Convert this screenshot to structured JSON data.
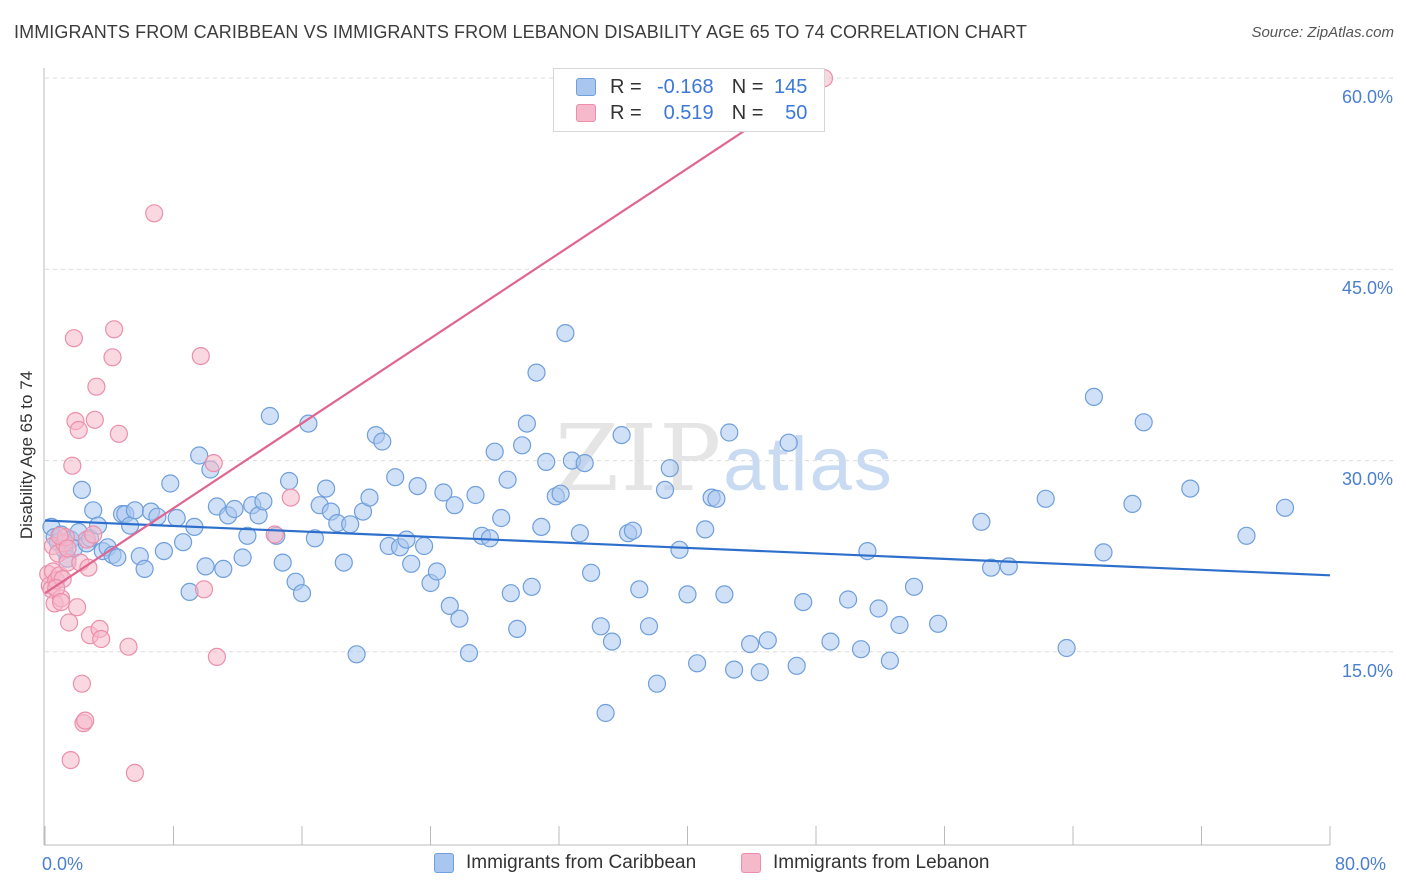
{
  "header": {
    "title": "IMMIGRANTS FROM CARIBBEAN VS IMMIGRANTS FROM LEBANON DISABILITY AGE 65 TO 74 CORRELATION CHART",
    "source": "Source: ZipAtlas.com"
  },
  "watermark": {
    "zip": "ZIP",
    "atlas": "atlas"
  },
  "legend": {
    "row1": {
      "r_label": "R =",
      "r_value": "-0.168",
      "n_label": "N =",
      "n_value": "145"
    },
    "row2": {
      "r_label": "R =",
      "r_value": "0.519",
      "n_label": "N =",
      "n_value": "50"
    }
  },
  "bottom_legend": {
    "series1": "Immigrants from Caribbean",
    "series2": "Immigrants from Lebanon"
  },
  "colors": {
    "blue_fill": "#a9c7ee",
    "blue_stroke": "#6f9fdc",
    "blue_line": "#2e6fcc",
    "pink_fill": "#f6b8cb",
    "pink_stroke": "#eb8fab",
    "pink_line": "#e06591",
    "grid": "#dcdcdc",
    "tick_text": "#4a7fcf"
  },
  "chart_data": {
    "type": "scatter",
    "title": "IMMIGRANTS FROM CARIBBEAN VS IMMIGRANTS FROM LEBANON DISABILITY AGE 65 TO 74 CORRELATION CHART",
    "xlabel": "",
    "ylabel": "Disability Age 65 to 74",
    "xlim": [
      0,
      80
    ],
    "ylim": [
      0,
      62
    ],
    "x_tick_labels": [
      "0.0%",
      "80.0%"
    ],
    "y_ticks": [
      15,
      30,
      45,
      60
    ],
    "y_tick_labels": [
      "15.0%",
      "30.0%",
      "45.0%",
      "60.0%"
    ],
    "grid": true,
    "legend_position": "top-center",
    "series": [
      {
        "name": "Immigrants from Caribbean",
        "color": "#a9c7ee",
        "R": -0.168,
        "N": 145,
        "trend": {
          "x": [
            0,
            80
          ],
          "y": [
            25.3,
            21.0
          ]
        },
        "points": [
          [
            0.4,
            24.8
          ],
          [
            0.6,
            24.0
          ],
          [
            0.8,
            23.6
          ],
          [
            1.0,
            24.2
          ],
          [
            1.2,
            23.0
          ],
          [
            1.4,
            22.3
          ],
          [
            1.6,
            23.8
          ],
          [
            1.8,
            23.1
          ],
          [
            2.1,
            24.4
          ],
          [
            2.3,
            27.7
          ],
          [
            2.6,
            23.5
          ],
          [
            2.8,
            23.9
          ],
          [
            3.0,
            26.1
          ],
          [
            3.3,
            24.9
          ],
          [
            3.6,
            22.9
          ],
          [
            3.9,
            23.2
          ],
          [
            4.2,
            22.6
          ],
          [
            4.5,
            22.4
          ],
          [
            4.8,
            25.8
          ],
          [
            5.0,
            25.8
          ],
          [
            5.3,
            24.9
          ],
          [
            5.6,
            26.1
          ],
          [
            5.9,
            22.5
          ],
          [
            6.2,
            21.5
          ],
          [
            6.6,
            26.0
          ],
          [
            7.0,
            25.6
          ],
          [
            7.4,
            22.9
          ],
          [
            7.8,
            28.2
          ],
          [
            8.2,
            25.5
          ],
          [
            8.6,
            23.6
          ],
          [
            9.0,
            19.7
          ],
          [
            9.3,
            24.8
          ],
          [
            9.6,
            30.4
          ],
          [
            10.0,
            21.7
          ],
          [
            10.3,
            29.3
          ],
          [
            10.7,
            26.4
          ],
          [
            11.1,
            21.5
          ],
          [
            11.4,
            25.7
          ],
          [
            11.8,
            26.2
          ],
          [
            12.3,
            22.4
          ],
          [
            12.6,
            24.1
          ],
          [
            12.9,
            26.5
          ],
          [
            13.3,
            25.7
          ],
          [
            13.6,
            26.8
          ],
          [
            14.0,
            33.5
          ],
          [
            14.4,
            24.1
          ],
          [
            14.8,
            22.0
          ],
          [
            15.2,
            28.4
          ],
          [
            15.6,
            20.5
          ],
          [
            16.0,
            19.6
          ],
          [
            16.4,
            32.9
          ],
          [
            16.8,
            23.9
          ],
          [
            17.1,
            26.5
          ],
          [
            17.5,
            27.8
          ],
          [
            17.8,
            26.0
          ],
          [
            18.2,
            25.1
          ],
          [
            18.6,
            22.0
          ],
          [
            19.0,
            25.0
          ],
          [
            19.4,
            14.8
          ],
          [
            19.8,
            26.0
          ],
          [
            20.2,
            27.1
          ],
          [
            20.6,
            32.0
          ],
          [
            21.0,
            31.5
          ],
          [
            21.4,
            23.3
          ],
          [
            21.8,
            28.7
          ],
          [
            22.1,
            23.2
          ],
          [
            22.5,
            23.8
          ],
          [
            22.8,
            21.9
          ],
          [
            23.2,
            28.0
          ],
          [
            23.6,
            23.3
          ],
          [
            24.0,
            20.4
          ],
          [
            24.4,
            21.3
          ],
          [
            24.8,
            27.5
          ],
          [
            25.2,
            18.6
          ],
          [
            25.5,
            26.5
          ],
          [
            25.8,
            17.6
          ],
          [
            26.4,
            14.9
          ],
          [
            26.8,
            27.3
          ],
          [
            27.2,
            24.1
          ],
          [
            27.7,
            23.9
          ],
          [
            28.0,
            30.7
          ],
          [
            28.4,
            25.5
          ],
          [
            28.8,
            28.5
          ],
          [
            29.0,
            19.6
          ],
          [
            29.4,
            16.8
          ],
          [
            29.7,
            31.2
          ],
          [
            30.0,
            32.9
          ],
          [
            30.3,
            20.1
          ],
          [
            30.6,
            36.9
          ],
          [
            30.9,
            24.8
          ],
          [
            31.2,
            29.9
          ],
          [
            31.8,
            27.2
          ],
          [
            32.1,
            27.4
          ],
          [
            32.4,
            40.0
          ],
          [
            32.8,
            30.0
          ],
          [
            33.3,
            24.3
          ],
          [
            33.6,
            29.8
          ],
          [
            34.0,
            21.2
          ],
          [
            34.6,
            17.0
          ],
          [
            34.9,
            10.2
          ],
          [
            35.3,
            15.8
          ],
          [
            35.9,
            32.0
          ],
          [
            36.3,
            24.3
          ],
          [
            36.6,
            24.5
          ],
          [
            37.0,
            19.9
          ],
          [
            37.6,
            17.0
          ],
          [
            38.1,
            12.5
          ],
          [
            38.6,
            27.7
          ],
          [
            38.9,
            29.4
          ],
          [
            39.5,
            23.0
          ],
          [
            40.0,
            19.5
          ],
          [
            40.6,
            14.1
          ],
          [
            41.1,
            24.6
          ],
          [
            41.5,
            27.1
          ],
          [
            41.8,
            27.0
          ],
          [
            42.3,
            19.5
          ],
          [
            42.6,
            32.2
          ],
          [
            42.9,
            13.6
          ],
          [
            43.9,
            15.6
          ],
          [
            44.5,
            13.4
          ],
          [
            45.0,
            15.9
          ],
          [
            46.3,
            31.4
          ],
          [
            46.8,
            13.9
          ],
          [
            47.2,
            18.9
          ],
          [
            48.9,
            15.8
          ],
          [
            50.0,
            19.1
          ],
          [
            50.8,
            15.2
          ],
          [
            51.2,
            22.9
          ],
          [
            51.9,
            18.4
          ],
          [
            52.6,
            14.3
          ],
          [
            53.2,
            17.1
          ],
          [
            54.1,
            20.1
          ],
          [
            55.6,
            17.2
          ],
          [
            58.3,
            25.2
          ],
          [
            58.9,
            21.6
          ],
          [
            60.0,
            21.7
          ],
          [
            62.3,
            27.0
          ],
          [
            63.6,
            15.3
          ],
          [
            65.3,
            35.0
          ],
          [
            65.9,
            22.8
          ],
          [
            67.7,
            26.6
          ],
          [
            68.4,
            33.0
          ],
          [
            71.3,
            27.8
          ],
          [
            74.8,
            24.1
          ],
          [
            77.2,
            26.3
          ]
        ]
      },
      {
        "name": "Immigrants from Lebanon",
        "color": "#f6b8cb",
        "R": 0.519,
        "N": 50,
        "trend": {
          "x": [
            0,
            48.5
          ],
          "y": [
            19.6,
            60.0
          ]
        },
        "points": [
          [
            0.2,
            21.1
          ],
          [
            0.3,
            20.2
          ],
          [
            0.4,
            19.9
          ],
          [
            0.5,
            21.3
          ],
          [
            0.5,
            23.3
          ],
          [
            0.6,
            18.8
          ],
          [
            0.7,
            20.6
          ],
          [
            0.8,
            22.7
          ],
          [
            0.9,
            21.0
          ],
          [
            1.0,
            19.2
          ],
          [
            1.1,
            20.7
          ],
          [
            1.2,
            23.5
          ],
          [
            1.3,
            24.0
          ],
          [
            1.4,
            22.0
          ],
          [
            1.5,
            17.3
          ],
          [
            1.6,
            6.5
          ],
          [
            1.7,
            29.6
          ],
          [
            1.8,
            39.6
          ],
          [
            1.9,
            33.1
          ],
          [
            2.0,
            18.5
          ],
          [
            2.1,
            32.4
          ],
          [
            2.2,
            22.0
          ],
          [
            2.3,
            12.5
          ],
          [
            2.4,
            9.4
          ],
          [
            2.5,
            9.6
          ],
          [
            2.6,
            23.8
          ],
          [
            2.7,
            21.6
          ],
          [
            2.8,
            16.3
          ],
          [
            3.0,
            24.2
          ],
          [
            3.1,
            33.2
          ],
          [
            3.2,
            35.8
          ],
          [
            3.4,
            16.8
          ],
          [
            3.5,
            16.0
          ],
          [
            4.2,
            38.1
          ],
          [
            4.3,
            40.3
          ],
          [
            4.6,
            32.1
          ],
          [
            5.2,
            15.4
          ],
          [
            5.6,
            5.5
          ],
          [
            6.8,
            49.4
          ],
          [
            9.7,
            38.2
          ],
          [
            9.9,
            19.9
          ],
          [
            10.5,
            29.8
          ],
          [
            10.7,
            14.6
          ],
          [
            14.3,
            24.2
          ],
          [
            15.3,
            27.1
          ],
          [
            0.9,
            24.1
          ],
          [
            1.4,
            23.1
          ],
          [
            0.7,
            20.0
          ],
          [
            1.0,
            18.9
          ],
          [
            48.5,
            60.0
          ]
        ]
      }
    ]
  }
}
